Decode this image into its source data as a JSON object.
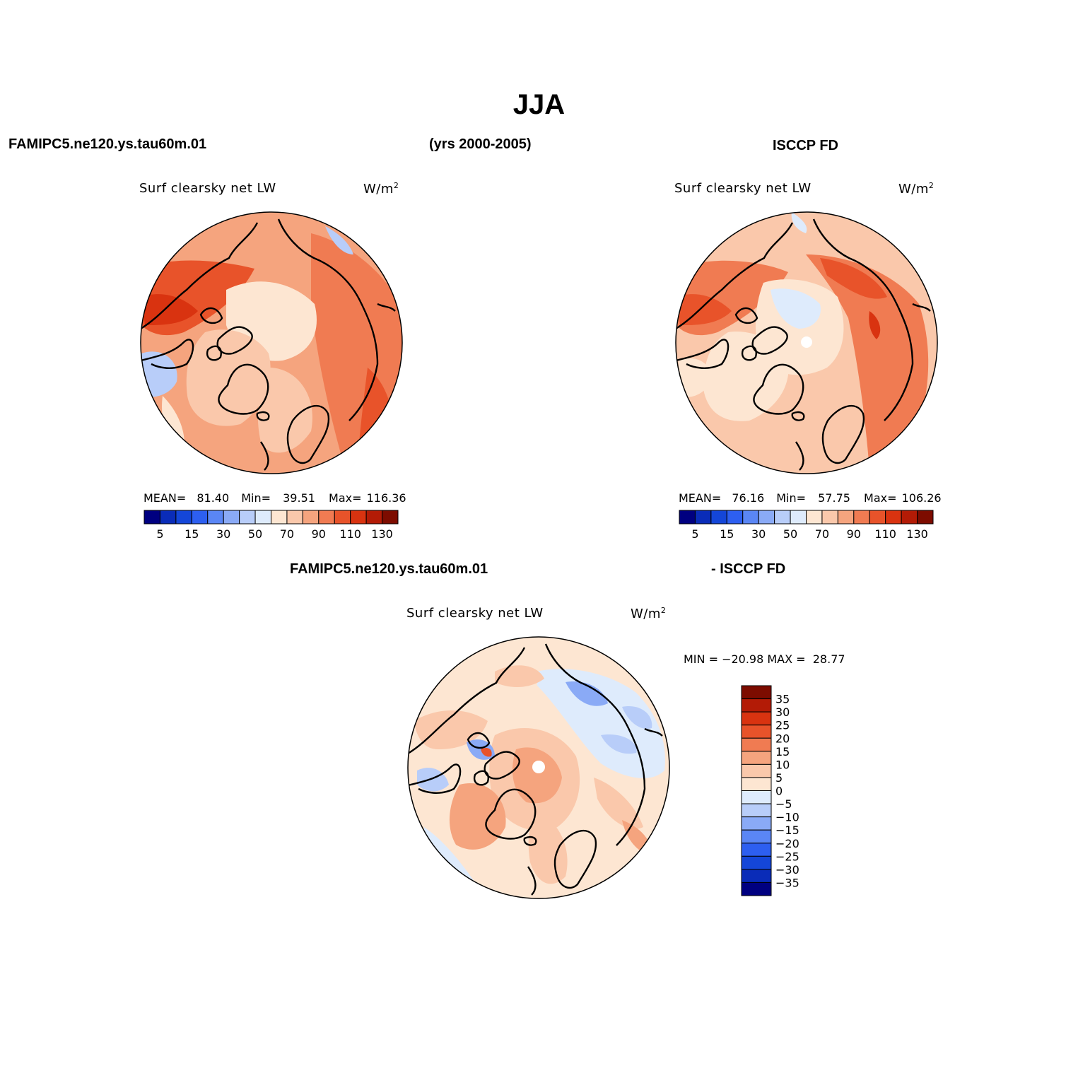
{
  "figure": {
    "title": "JJA",
    "header_left": "FAMIPC5.ne120.ys.tau60m.01",
    "header_center": "(yrs 2000-2005)",
    "header_right": "ISCCP FD",
    "diff_header_left": "FAMIPC5.ne120.ys.tau60m.01",
    "diff_header_right": "- ISCCP FD"
  },
  "panels": [
    {
      "variable": "Surf clearsky net LW",
      "units": "W/m",
      "units_sup": "2",
      "stats": {
        "mean_label": "MEAN=",
        "mean": "81.40",
        "min_label": "Min=",
        "min": "39.51",
        "max_label": "Max=",
        "max": "116.36"
      }
    },
    {
      "variable": "Surf clearsky net LW",
      "units": "W/m",
      "units_sup": "2",
      "stats": {
        "mean_label": "MEAN=",
        "mean": "76.16",
        "min_label": "Min=",
        "min": "57.75",
        "max_label": "Max=",
        "max": "106.26"
      }
    },
    {
      "variable": "Surf clearsky net LW",
      "units": "W/m",
      "units_sup": "2",
      "stats_text": "MIN = −20.98 MAX =  28.77"
    }
  ],
  "chart_data": [
    {
      "type": "heatmap",
      "projection": "north polar stereographic",
      "field": "Surf clearsky net LW",
      "units": "W/m2",
      "stats": {
        "mean": 81.4,
        "min": 39.51,
        "max": 116.36
      },
      "colorbar": {
        "orientation": "horizontal",
        "levels": [
          5,
          10,
          15,
          20,
          30,
          40,
          50,
          60,
          70,
          80,
          90,
          100,
          110,
          120,
          130
        ],
        "tick_labels": [
          "5",
          "15",
          "30",
          "50",
          "70",
          "90",
          "110",
          "130"
        ],
        "colors": [
          "#000080",
          "#0a2cb8",
          "#1446d8",
          "#2d5ff0",
          "#5a86f5",
          "#8aaaf6",
          "#b8cdf9",
          "#deebfc",
          "#fde6d2",
          "#fac8ab",
          "#f5a47e",
          "#f07b52",
          "#e8532a",
          "#d93310",
          "#b31b06",
          "#7d0c00"
        ]
      }
    },
    {
      "type": "heatmap",
      "projection": "north polar stereographic",
      "field": "Surf clearsky net LW",
      "units": "W/m2",
      "stats": {
        "mean": 76.16,
        "min": 57.75,
        "max": 106.26
      },
      "colorbar": {
        "orientation": "horizontal",
        "levels": [
          5,
          10,
          15,
          20,
          30,
          40,
          50,
          60,
          70,
          80,
          90,
          100,
          110,
          120,
          130
        ],
        "tick_labels": [
          "5",
          "15",
          "30",
          "50",
          "70",
          "90",
          "110",
          "130"
        ],
        "colors": [
          "#000080",
          "#0a2cb8",
          "#1446d8",
          "#2d5ff0",
          "#5a86f5",
          "#8aaaf6",
          "#b8cdf9",
          "#deebfc",
          "#fde6d2",
          "#fac8ab",
          "#f5a47e",
          "#f07b52",
          "#e8532a",
          "#d93310",
          "#b31b06",
          "#7d0c00"
        ]
      }
    },
    {
      "type": "heatmap",
      "projection": "north polar stereographic",
      "field": "Surf clearsky net LW",
      "units": "W/m2",
      "stats": {
        "min": -20.98,
        "max": 28.77
      },
      "colorbar": {
        "orientation": "vertical",
        "levels": [
          35,
          30,
          25,
          20,
          15,
          10,
          5,
          0,
          -5,
          -10,
          -15,
          -20,
          -25,
          -30,
          -35
        ],
        "tick_labels": [
          "35",
          "30",
          "25",
          "20",
          "15",
          "10",
          "5",
          "0",
          "−5",
          "−10",
          "−15",
          "−20",
          "−25",
          "−30",
          "−35"
        ],
        "colors": [
          "#7d0c00",
          "#b31b06",
          "#d93310",
          "#e8532a",
          "#f07b52",
          "#f5a47e",
          "#fac8ab",
          "#fde6d2",
          "#deebfc",
          "#b8cdf9",
          "#8aaaf6",
          "#5a86f5",
          "#2d5ff0",
          "#1446d8",
          "#0a2cb8",
          "#000080"
        ]
      }
    }
  ]
}
